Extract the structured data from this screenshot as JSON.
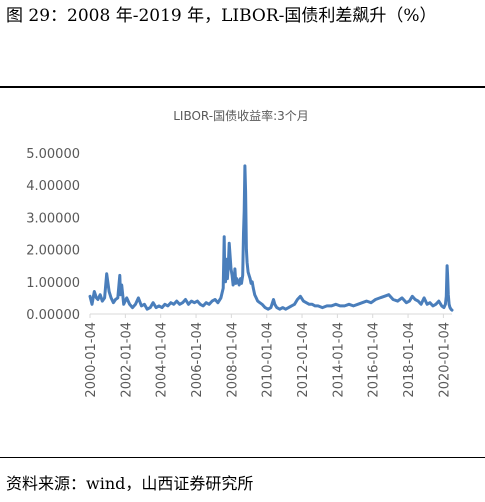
{
  "figure": {
    "title": "图 29：2008 年-2019 年，LIBOR-国债利差飙升（%）",
    "source": "资料来源：wind，山西证券研究所"
  },
  "chart_data": {
    "type": "line",
    "title": "LIBOR-国债收益率:3个月",
    "xlabel": "",
    "ylabel": "",
    "ylim": [
      0,
      5
    ],
    "yticks": [
      "0.00000",
      "1.00000",
      "2.00000",
      "3.00000",
      "4.00000",
      "5.00000"
    ],
    "xlim": [
      "2000-01-04",
      "2020-06-30"
    ],
    "xticks": [
      "2000-01-04",
      "2002-01-04",
      "2004-01-04",
      "2006-01-04",
      "2008-01-04",
      "2010-01-04",
      "2012-01-04",
      "2014-01-04",
      "2016-01-04",
      "2018-01-04",
      "2020-01-04"
    ],
    "grid": false,
    "legend": "none",
    "line_color": "#4a7ebb",
    "series": [
      {
        "x": [
          "2000-01-04",
          "2000-02-15",
          "2000-04-01",
          "2000-05-15",
          "2000-06-15",
          "2000-08-01",
          "2000-09-15",
          "2000-11-01",
          "2000-12-15",
          "2001-02-01",
          "2001-03-15",
          "2001-05-01",
          "2001-06-15",
          "2001-08-01",
          "2001-09-10",
          "2001-09-25",
          "2001-10-20",
          "2001-12-01",
          "2002-02-01",
          "2002-04-01",
          "2002-06-01",
          "2002-08-01",
          "2002-10-01",
          "2002-12-01",
          "2003-02-01",
          "2003-04-01",
          "2003-06-01",
          "2003-08-01",
          "2003-10-01",
          "2003-12-01",
          "2004-02-01",
          "2004-04-01",
          "2004-06-01",
          "2004-08-01",
          "2004-10-01",
          "2004-12-01",
          "2005-02-01",
          "2005-04-01",
          "2005-06-01",
          "2005-08-01",
          "2005-10-01",
          "2005-12-01",
          "2006-02-01",
          "2006-04-01",
          "2006-06-01",
          "2006-08-01",
          "2006-10-01",
          "2006-12-01",
          "2007-02-01",
          "2007-04-01",
          "2007-06-01",
          "2007-07-20",
          "2007-08-10",
          "2007-08-20",
          "2007-09-05",
          "2007-09-25",
          "2007-10-15",
          "2007-11-01",
          "2007-11-20",
          "2007-12-10",
          "2007-12-28",
          "2008-01-20",
          "2008-02-10",
          "2008-03-01",
          "2008-03-18",
          "2008-04-05",
          "2008-04-25",
          "2008-05-20",
          "2008-06-15",
          "2008-07-10",
          "2008-08-01",
          "2008-08-25",
          "2008-09-12",
          "2008-09-26",
          "2008-10-10",
          "2008-10-24",
          "2008-11-10",
          "2008-11-25",
          "2008-12-15",
          "2009-01-05",
          "2009-01-25",
          "2009-02-15",
          "2009-03-10",
          "2009-04-01",
          "2009-05-01",
          "2009-06-01",
          "2009-07-01",
          "2009-08-15",
          "2009-10-01",
          "2009-12-01",
          "2010-02-01",
          "2010-04-01",
          "2010-05-25",
          "2010-06-20",
          "2010-08-01",
          "2010-10-01",
          "2010-12-01",
          "2011-02-01",
          "2011-04-01",
          "2011-06-01",
          "2011-08-01",
          "2011-10-01",
          "2011-12-01",
          "2012-02-01",
          "2012-04-01",
          "2012-06-01",
          "2012-08-01",
          "2012-10-01",
          "2012-12-01",
          "2013-03-01",
          "2013-06-01",
          "2013-09-01",
          "2013-12-01",
          "2014-03-01",
          "2014-06-01",
          "2014-09-01",
          "2014-12-01",
          "2015-03-01",
          "2015-06-01",
          "2015-09-01",
          "2015-12-01",
          "2016-03-01",
          "2016-06-01",
          "2016-09-01",
          "2016-12-01",
          "2017-03-01",
          "2017-06-01",
          "2017-09-01",
          "2017-12-01",
          "2018-02-01",
          "2018-04-01",
          "2018-06-01",
          "2018-08-01",
          "2018-10-01",
          "2018-12-01",
          "2019-02-01",
          "2019-04-01",
          "2019-06-01",
          "2019-08-01",
          "2019-10-01",
          "2019-12-01",
          "2020-01-15",
          "2020-02-15",
          "2020-03-05",
          "2020-03-20",
          "2020-03-31",
          "2020-04-15",
          "2020-05-01",
          "2020-05-20",
          "2020-06-10",
          "2020-06-30"
        ],
        "values": [
          0.55,
          0.3,
          0.7,
          0.5,
          0.45,
          0.6,
          0.4,
          0.5,
          1.25,
          0.7,
          0.5,
          0.35,
          0.45,
          0.5,
          1.2,
          0.6,
          0.9,
          0.3,
          0.5,
          0.3,
          0.2,
          0.3,
          0.5,
          0.25,
          0.3,
          0.15,
          0.2,
          0.35,
          0.2,
          0.25,
          0.2,
          0.3,
          0.25,
          0.35,
          0.3,
          0.4,
          0.3,
          0.35,
          0.45,
          0.3,
          0.4,
          0.35,
          0.4,
          0.3,
          0.25,
          0.35,
          0.3,
          0.4,
          0.45,
          0.35,
          0.5,
          0.8,
          2.4,
          1.3,
          1.0,
          1.7,
          1.1,
          1.5,
          2.2,
          1.8,
          1.4,
          1.2,
          0.9,
          1.0,
          1.4,
          0.95,
          1.1,
          1.0,
          0.9,
          1.1,
          0.95,
          1.2,
          2.5,
          3.2,
          4.6,
          3.8,
          2.0,
          1.6,
          1.3,
          1.2,
          1.1,
          0.95,
          1.0,
          0.8,
          0.6,
          0.5,
          0.4,
          0.35,
          0.3,
          0.2,
          0.15,
          0.2,
          0.45,
          0.3,
          0.2,
          0.15,
          0.2,
          0.15,
          0.2,
          0.25,
          0.3,
          0.45,
          0.55,
          0.4,
          0.35,
          0.3,
          0.3,
          0.25,
          0.25,
          0.2,
          0.25,
          0.25,
          0.3,
          0.25,
          0.25,
          0.3,
          0.25,
          0.3,
          0.35,
          0.4,
          0.35,
          0.45,
          0.5,
          0.55,
          0.6,
          0.45,
          0.4,
          0.5,
          0.35,
          0.4,
          0.55,
          0.45,
          0.4,
          0.3,
          0.5,
          0.3,
          0.35,
          0.25,
          0.3,
          0.4,
          0.25,
          0.2,
          0.3,
          0.55,
          1.5,
          1.2,
          0.6,
          0.3,
          0.2,
          0.15,
          0.12
        ]
      }
    ]
  }
}
